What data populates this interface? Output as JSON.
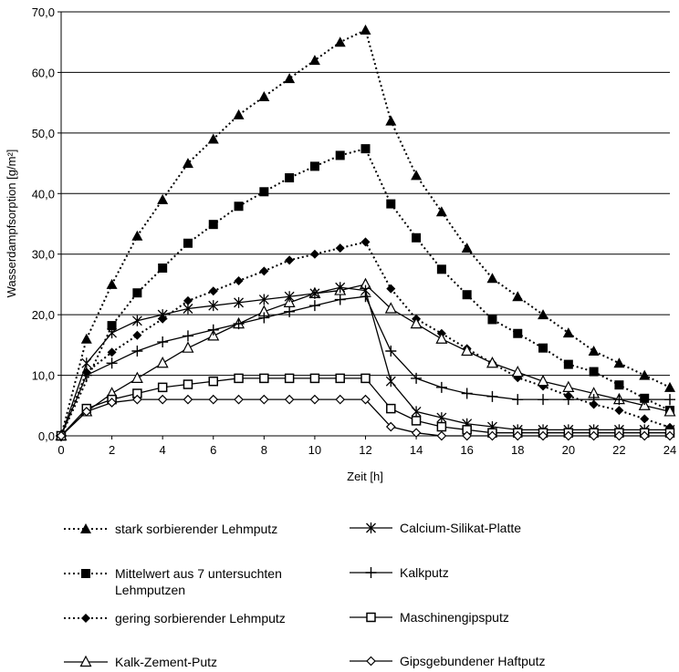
{
  "chart_data": {
    "type": "line",
    "title": "",
    "xlabel": "Zeit [h]",
    "ylabel": "Wasserdampfsorption [g/m²]",
    "xlim": [
      0,
      24
    ],
    "ylim": [
      0,
      70
    ],
    "x_ticks": [
      0,
      2,
      4,
      6,
      8,
      10,
      12,
      14,
      16,
      18,
      20,
      22,
      24
    ],
    "x_tick_labels": [
      "0",
      "2",
      "4",
      "6",
      "8",
      "10",
      "12",
      "14",
      "16",
      "18",
      "20",
      "22",
      "24"
    ],
    "y_ticks": [
      0,
      10,
      20,
      30,
      40,
      50,
      60,
      70
    ],
    "y_tick_labels": [
      "0,0",
      "10,0",
      "20,0",
      "30,0",
      "40,0",
      "50,0",
      "60,0",
      "70,0"
    ],
    "grid": "horizontal",
    "legend_position": "bottom",
    "x": [
      0,
      1,
      2,
      3,
      4,
      5,
      6,
      7,
      8,
      9,
      10,
      11,
      12,
      13,
      14,
      15,
      16,
      17,
      18,
      19,
      20,
      21,
      22,
      23,
      24
    ],
    "series": [
      {
        "name": "stark sorbierender Lehmputz",
        "line": "dotted",
        "marker": "triangle-filled",
        "values": [
          0,
          16,
          25,
          33,
          39,
          45,
          49,
          53,
          56,
          59,
          62,
          65,
          67,
          52,
          43,
          37,
          31,
          26,
          23,
          20,
          17,
          14,
          12,
          10,
          8
        ]
      },
      {
        "name": "Mittelwert aus 7 untersuchten Lehmputzen",
        "line": "dotted",
        "marker": "square-filled",
        "values": [
          0,
          null,
          18.2,
          23.6,
          27.7,
          31.8,
          34.9,
          37.9,
          40.3,
          42.6,
          44.5,
          46.3,
          47.4,
          38.3,
          32.7,
          27.5,
          23.3,
          19.2,
          16.9,
          14.5,
          11.8,
          10.6,
          8.4,
          6.2,
          4.2
        ]
      },
      {
        "name": "gering sorbierender Lehmputz",
        "line": "dotted",
        "marker": "diamond-filled",
        "values": [
          0,
          10.5,
          13.8,
          16.6,
          19.3,
          22.3,
          23.9,
          25.6,
          27.2,
          29.0,
          30.0,
          31.0,
          32.0,
          24.3,
          19.3,
          16.9,
          14.4,
          12.0,
          9.6,
          8.2,
          6.6,
          5.2,
          4.2,
          2.8,
          1.4
        ]
      },
      {
        "name": "Kalk-Zement-Putz",
        "line": "solid",
        "marker": "triangle-open",
        "values": [
          0,
          4.0,
          7.0,
          9.5,
          12.0,
          14.5,
          16.5,
          18.5,
          20.5,
          22.0,
          23.5,
          24.0,
          25.0,
          21.0,
          18.5,
          16.0,
          14.0,
          12.0,
          10.5,
          9.0,
          8.0,
          7.0,
          6.0,
          5.0,
          4.0
        ]
      },
      {
        "name": "Calcium-Silikat-Platte",
        "line": "solid",
        "marker": "asterisk",
        "values": [
          0,
          12.0,
          17.0,
          19.0,
          20.0,
          21.0,
          21.5,
          22.0,
          22.5,
          23.0,
          23.5,
          24.5,
          24.0,
          9.0,
          4.0,
          3.0,
          2.0,
          1.5,
          1.0,
          1.0,
          1.0,
          1.0,
          1.0,
          1.0,
          1.0
        ]
      },
      {
        "name": "Kalkputz",
        "line": "solid",
        "marker": "plus",
        "values": [
          0,
          10.0,
          12.0,
          14.0,
          15.5,
          16.5,
          17.5,
          18.5,
          19.5,
          20.5,
          21.5,
          22.5,
          23.0,
          14.0,
          9.5,
          8.0,
          7.0,
          6.5,
          6.0,
          6.0,
          6.0,
          6.0,
          6.0,
          6.0,
          6.0
        ]
      },
      {
        "name": "Maschinengipsputz",
        "line": "solid",
        "marker": "square-open",
        "values": [
          0,
          4.5,
          6.0,
          7.0,
          8.0,
          8.5,
          9.0,
          9.5,
          9.5,
          9.5,
          9.5,
          9.5,
          9.5,
          4.5,
          2.5,
          1.5,
          1.0,
          0.5,
          0.5,
          0.5,
          0.5,
          0.5,
          0.5,
          0.5,
          0.5
        ]
      },
      {
        "name": "Gipsgebundener Haftputz",
        "line": "solid",
        "marker": "diamond-open",
        "values": [
          0,
          4.0,
          5.5,
          6.0,
          6.0,
          6.0,
          6.0,
          6.0,
          6.0,
          6.0,
          6.0,
          6.0,
          6.0,
          1.5,
          0.5,
          0,
          0,
          0,
          0,
          0,
          0,
          0,
          0,
          0,
          0
        ]
      }
    ],
    "legend_lines": {
      "Mittelwert aus 7 untersuchten Lehmputzen": [
        "Mittelwert aus 7 untersuchten",
        "Lehmputzen"
      ]
    }
  }
}
